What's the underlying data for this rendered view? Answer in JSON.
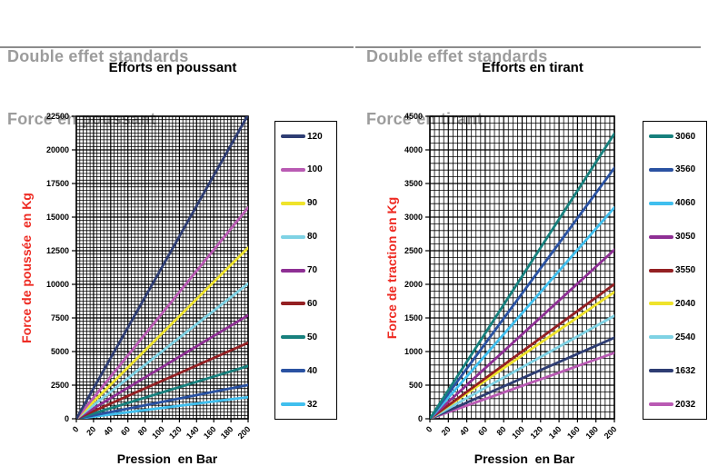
{
  "columns": [
    {
      "header_line1": "Double effet standards",
      "header_line2": "Force en poussant",
      "chart_title": "Efforts en poussant"
    },
    {
      "header_line1": "Double effet standards",
      "header_line2": "Force en tirant",
      "chart_title": "Efforts en tirant"
    }
  ],
  "chart_data": [
    {
      "type": "line",
      "title": "Efforts en poussant",
      "xlabel": "Pression  en Bar",
      "ylabel": "Force de poussée  en Kg",
      "xlim": [
        0,
        200
      ],
      "ylim": [
        0,
        22500
      ],
      "x_major_step": 20,
      "x_minor_step": 4,
      "y_major_step": 2500,
      "y_minor_step": 250,
      "grid": true,
      "legend_position": "right",
      "x": [
        0,
        200
      ],
      "series": [
        {
          "name": "120",
          "color": "#2e3d73",
          "values": [
            0,
            22620
          ]
        },
        {
          "name": "100",
          "color": "#b95ab3",
          "values": [
            0,
            15710
          ]
        },
        {
          "name": "90",
          "color": "#efe32b",
          "values": [
            0,
            12720
          ]
        },
        {
          "name": "80",
          "color": "#7ed2e4",
          "values": [
            0,
            10050
          ]
        },
        {
          "name": "70",
          "color": "#8e2f94",
          "values": [
            0,
            7700
          ]
        },
        {
          "name": "60",
          "color": "#942023",
          "values": [
            0,
            5655
          ]
        },
        {
          "name": "50",
          "color": "#17807d",
          "values": [
            0,
            3927
          ]
        },
        {
          "name": "40",
          "color": "#2a52a2",
          "values": [
            0,
            2513
          ]
        },
        {
          "name": "32",
          "color": "#40bfee",
          "values": [
            0,
            1608
          ]
        }
      ]
    },
    {
      "type": "line",
      "title": "Efforts en tirant",
      "xlabel": "Pression  en Bar",
      "ylabel": "Force de traction en Kg",
      "xlim": [
        0,
        200
      ],
      "ylim": [
        0,
        4500
      ],
      "x_major_step": 20,
      "x_minor_step": 5,
      "y_major_step": 500,
      "y_minor_step": 100,
      "grid": true,
      "legend_position": "right",
      "x": [
        0,
        200
      ],
      "series": [
        {
          "name": "3060",
          "color": "#17807d",
          "values": [
            0,
            4241
          ]
        },
        {
          "name": "3560",
          "color": "#2a52a2",
          "values": [
            0,
            3731
          ]
        },
        {
          "name": "4060",
          "color": "#40bfee",
          "values": [
            0,
            3142
          ]
        },
        {
          "name": "3050",
          "color": "#8e2f94",
          "values": [
            0,
            2513
          ]
        },
        {
          "name": "3550",
          "color": "#942023",
          "values": [
            0,
            2003
          ]
        },
        {
          "name": "2040",
          "color": "#efe32b",
          "values": [
            0,
            1885
          ]
        },
        {
          "name": "2540",
          "color": "#7ed2e4",
          "values": [
            0,
            1532
          ]
        },
        {
          "name": "1632",
          "color": "#2e3d73",
          "values": [
            0,
            1206
          ]
        },
        {
          "name": "2032",
          "color": "#b95ab3",
          "values": [
            0,
            981
          ]
        }
      ]
    }
  ]
}
